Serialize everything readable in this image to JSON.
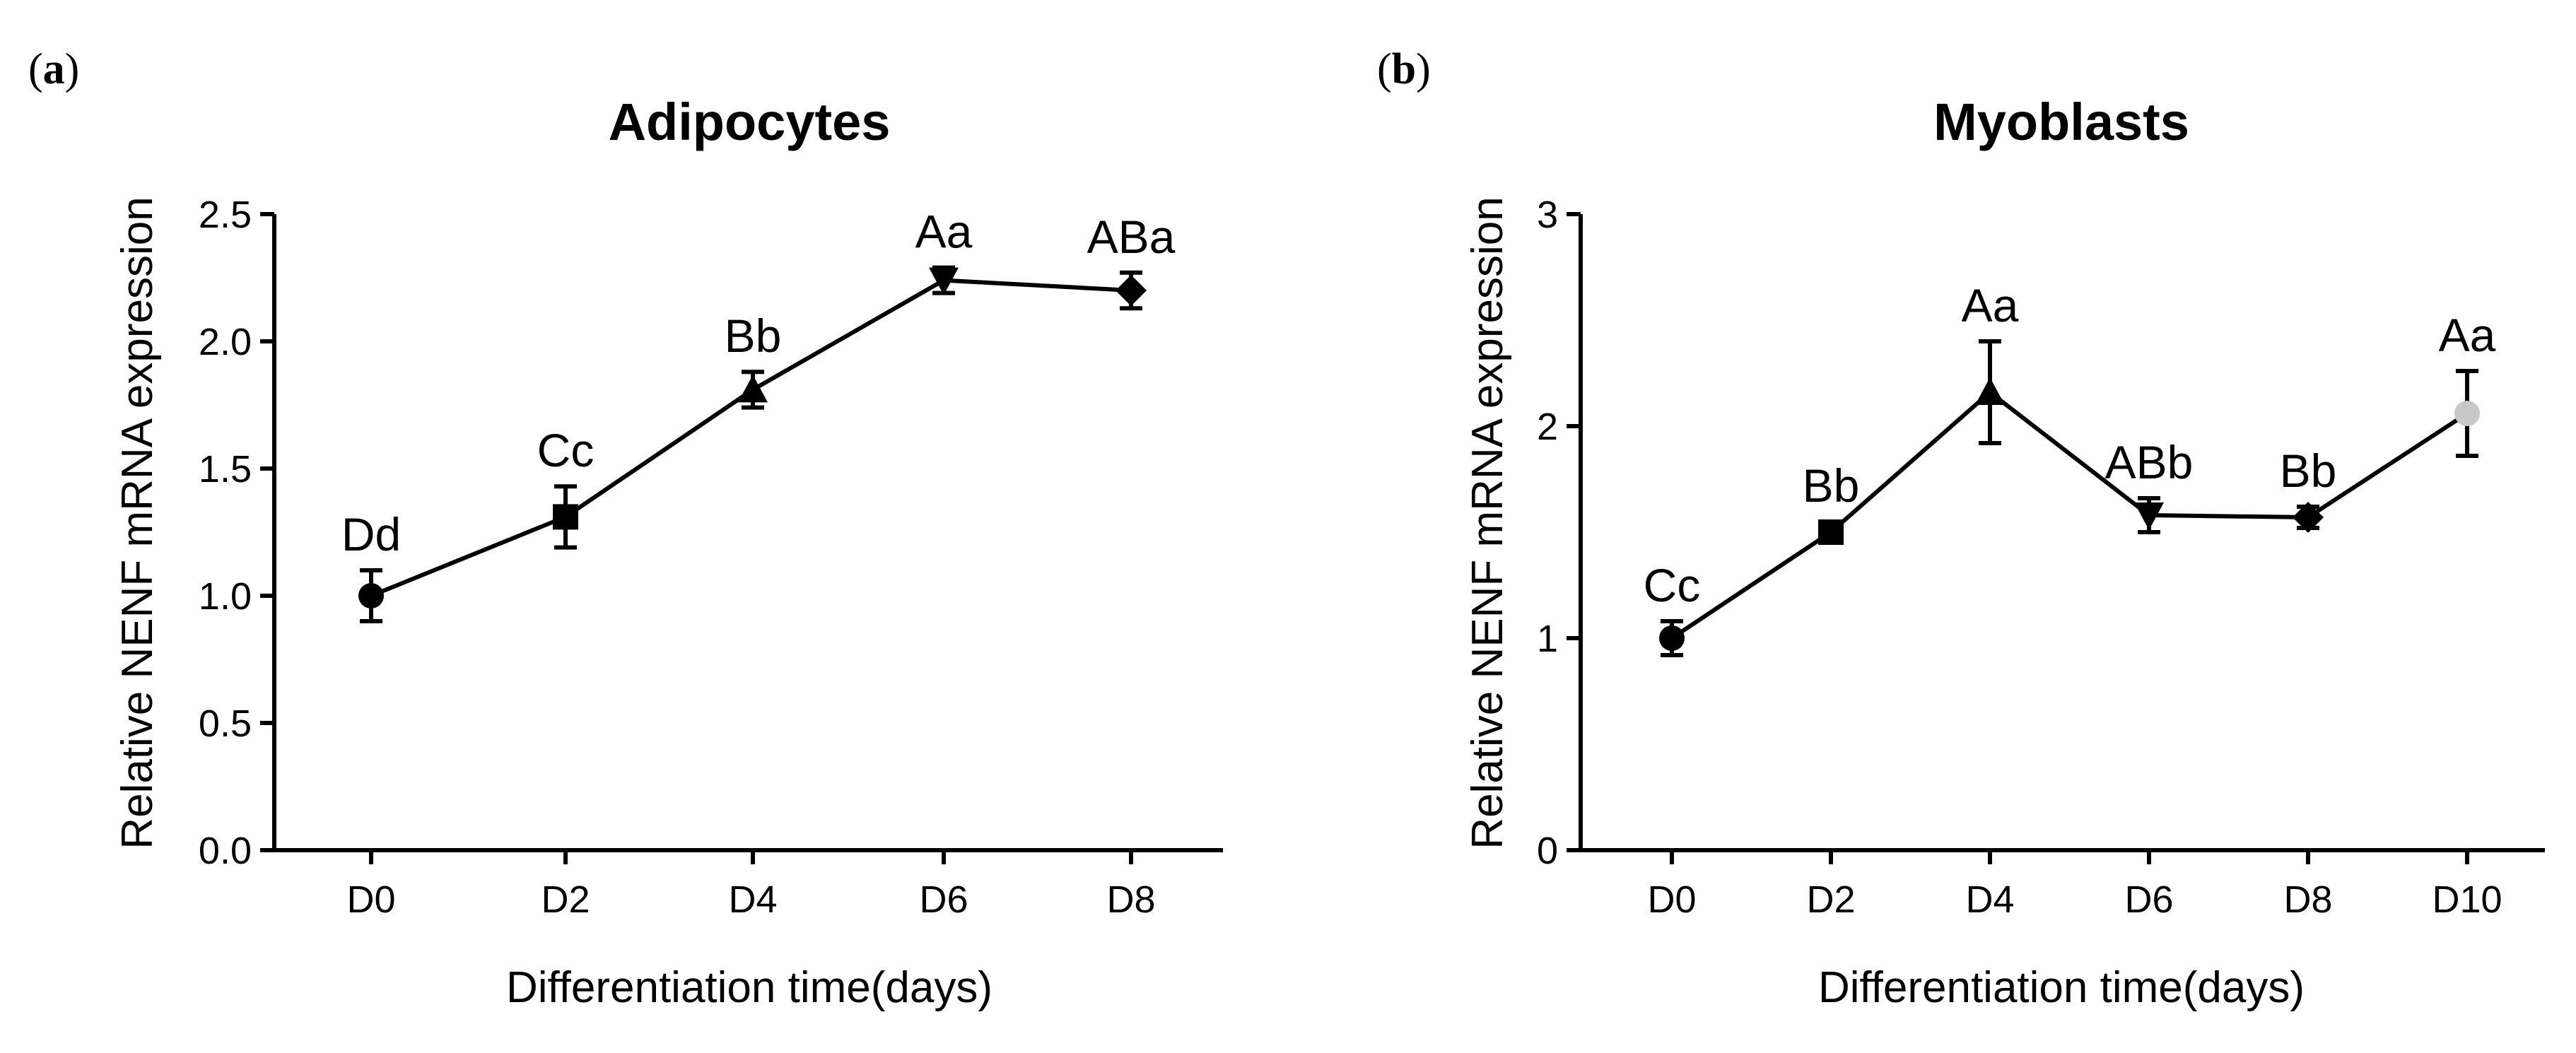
{
  "chart_data": [
    {
      "type": "line",
      "panel": "a",
      "title": "Adipocytes",
      "xlabel": "Differentiation time(days)",
      "ylabel": "Relative NENF mRNA expression",
      "ylim": [
        0,
        2.5
      ],
      "yticks": [
        "0.0",
        "0.5",
        "1.0",
        "1.5",
        "2.0",
        "2.5"
      ],
      "ytick_values": [
        0,
        0.5,
        1.0,
        1.5,
        2.0,
        2.5
      ],
      "categories": [
        "D0",
        "D2",
        "D4",
        "D6",
        "D8"
      ],
      "values": [
        1.0,
        1.31,
        1.81,
        2.24,
        2.2
      ],
      "errors": [
        0.1,
        0.12,
        0.07,
        0.05,
        0.07
      ],
      "markers": [
        "circle",
        "square",
        "triangle-up",
        "triangle-down",
        "diamond"
      ],
      "labels": [
        "Dd",
        "Cc",
        "Bb",
        "Aa",
        "ABa"
      ]
    },
    {
      "type": "line",
      "panel": "b",
      "title": "Myoblasts",
      "xlabel": "Differentiation time(days)",
      "ylabel": "Relative NENF mRNA expression",
      "ylim": [
        0,
        3
      ],
      "yticks": [
        "0",
        "1",
        "2",
        "3"
      ],
      "ytick_values": [
        0,
        1,
        2,
        3
      ],
      "categories": [
        "D0",
        "D2",
        "D4",
        "D6",
        "D8",
        "D10"
      ],
      "values": [
        1.0,
        1.5,
        2.16,
        1.58,
        1.57,
        2.06
      ],
      "errors": [
        0.08,
        0.05,
        0.24,
        0.08,
        0.05,
        0.2
      ],
      "markers": [
        "circle",
        "square",
        "triangle-up",
        "triangle-down",
        "diamond",
        "circle-gray"
      ],
      "labels": [
        "Cc",
        "Bb",
        "Aa",
        "ABb",
        "Bb",
        "Aa"
      ]
    }
  ],
  "colors": {
    "line": "#000000",
    "marker": "#000000",
    "last_marker_b": "#c8c8c8"
  }
}
